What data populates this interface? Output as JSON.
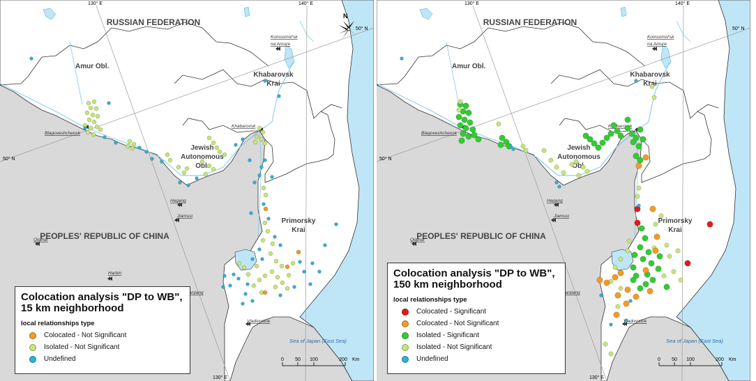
{
  "colors": {
    "land": "#ffffff",
    "china": "#d9d9d9",
    "sea": "#bfe6f7",
    "border": "#333333",
    "graticule": "#9a9a9a",
    "sea_text": "#2f6ea8"
  },
  "categories": {
    "colocated_sig": {
      "label": "Colocated - Significant",
      "color": "#e31a1c"
    },
    "colocated_ns": {
      "label": "Colocated - Not Significant",
      "color": "#f59a23"
    },
    "isolated_sig": {
      "label": "Isolated - Significant",
      "color": "#33cc33"
    },
    "isolated_ns": {
      "label": "Isolated - Not Significant",
      "color": "#c5e67a"
    },
    "undefined": {
      "label": "Undefined",
      "color": "#2eb0d8"
    }
  },
  "map_labels": {
    "russia": "RUSSIAN FEDERATION",
    "china": "PEOPLES' REPUBLIC OF CHINA",
    "amur": "Amur Obl.",
    "khabarovsk_krai_1": "Khabarovsk",
    "khabarovsk_krai_2": "Krai",
    "jewish_1": "Jewish",
    "jewish_2": "Autonomous",
    "jewish_3": "Obl.",
    "primorsky_1": "Primorsky",
    "primorsky_2": "Krai",
    "sea": "Sea of Japan (East Sea)"
  },
  "cities": {
    "komsomolsk_1": "Komsomol'sk",
    "komsomolsk_2": "na Amure",
    "khabarovsk": "Khabarovsk",
    "blagoveshchensk": "Blagoveshchensk",
    "hegang": "Hegang",
    "jiamusi": "Jiamusi",
    "qiqihar": "Qiqihar",
    "harbin": "Harbin",
    "mudanjiang": "Mudanjiang",
    "vladivostok": "Vladivostok"
  },
  "graticule": {
    "lon_130": "130° E",
    "lon_140": "140° E",
    "lat_50": "50° N"
  },
  "compass_north": "N",
  "scale": {
    "t0": "0",
    "t1": "50",
    "t2": "100",
    "t3": "200",
    "unit": "Km"
  },
  "panels": [
    {
      "title_line1": "Colocation analysis \"DP to WB\",",
      "title_line2": "15 km neighborhood",
      "subtitle": "local relationships type",
      "legend": [
        {
          "label": "Colocated - Not Significant",
          "color": "#f59a23"
        },
        {
          "label": "Isolated - Not Significant",
          "color": "#c5e67a"
        },
        {
          "label": "Undefined",
          "color": "#2eb0d8"
        }
      ]
    },
    {
      "title_line1": "Colocation analysis \"DP to WB\",",
      "title_line2": "150 km neighborhood",
      "subtitle": "local relationships type",
      "legend": [
        {
          "label": "Colocated - Significant",
          "color": "#e31a1c"
        },
        {
          "label": "Colocated - Not Significant",
          "color": "#f59a23"
        },
        {
          "label": "Isolated - Significant",
          "color": "#33cc33"
        },
        {
          "label": "Isolated - Not Significant",
          "color": "#c5e67a"
        },
        {
          "label": "Undefined",
          "color": "#2eb0d8"
        }
      ]
    }
  ]
}
